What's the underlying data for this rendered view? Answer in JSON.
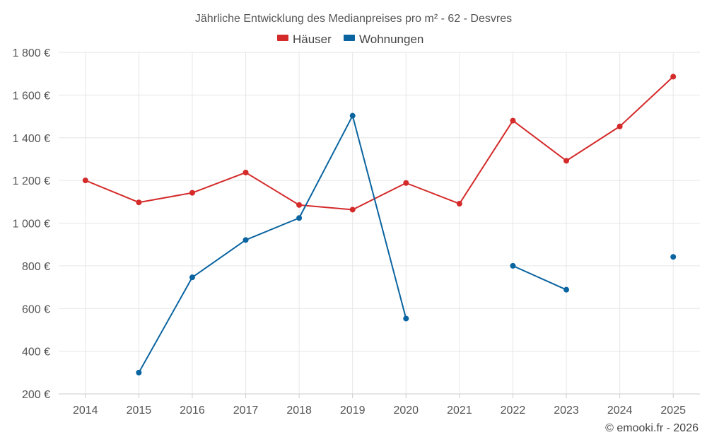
{
  "chart_data": {
    "type": "line",
    "title": "Jährliche Entwicklung des Medianpreises pro m² - 62 - Desvres",
    "categories": [
      "2014",
      "2015",
      "2016",
      "2017",
      "2018",
      "2019",
      "2020",
      "2021",
      "2022",
      "2023",
      "2024",
      "2025"
    ],
    "ylim": [
      200,
      1800
    ],
    "yticks": [
      200,
      400,
      600,
      800,
      1000,
      1200,
      1400,
      1600,
      1800
    ],
    "ytick_labels": [
      "200 €",
      "400 €",
      "600 €",
      "800 €",
      "1 000 €",
      "1 200 €",
      "1 400 €",
      "1 600 €",
      "1 800 €"
    ],
    "grid": true,
    "legend_position": "top-center",
    "series": [
      {
        "name": "Häuser",
        "color": "#d42a2a",
        "values": [
          1200,
          1097,
          1142,
          1237,
          1085,
          1063,
          1188,
          1091,
          1480,
          1292,
          1453,
          1686
        ]
      },
      {
        "name": "Wohnungen",
        "color": "#0a64a0",
        "values": [
          null,
          300,
          746,
          921,
          1024,
          1503,
          553,
          null,
          800,
          688,
          null,
          842
        ]
      }
    ]
  },
  "credit": "© emooki.fr - 2026"
}
